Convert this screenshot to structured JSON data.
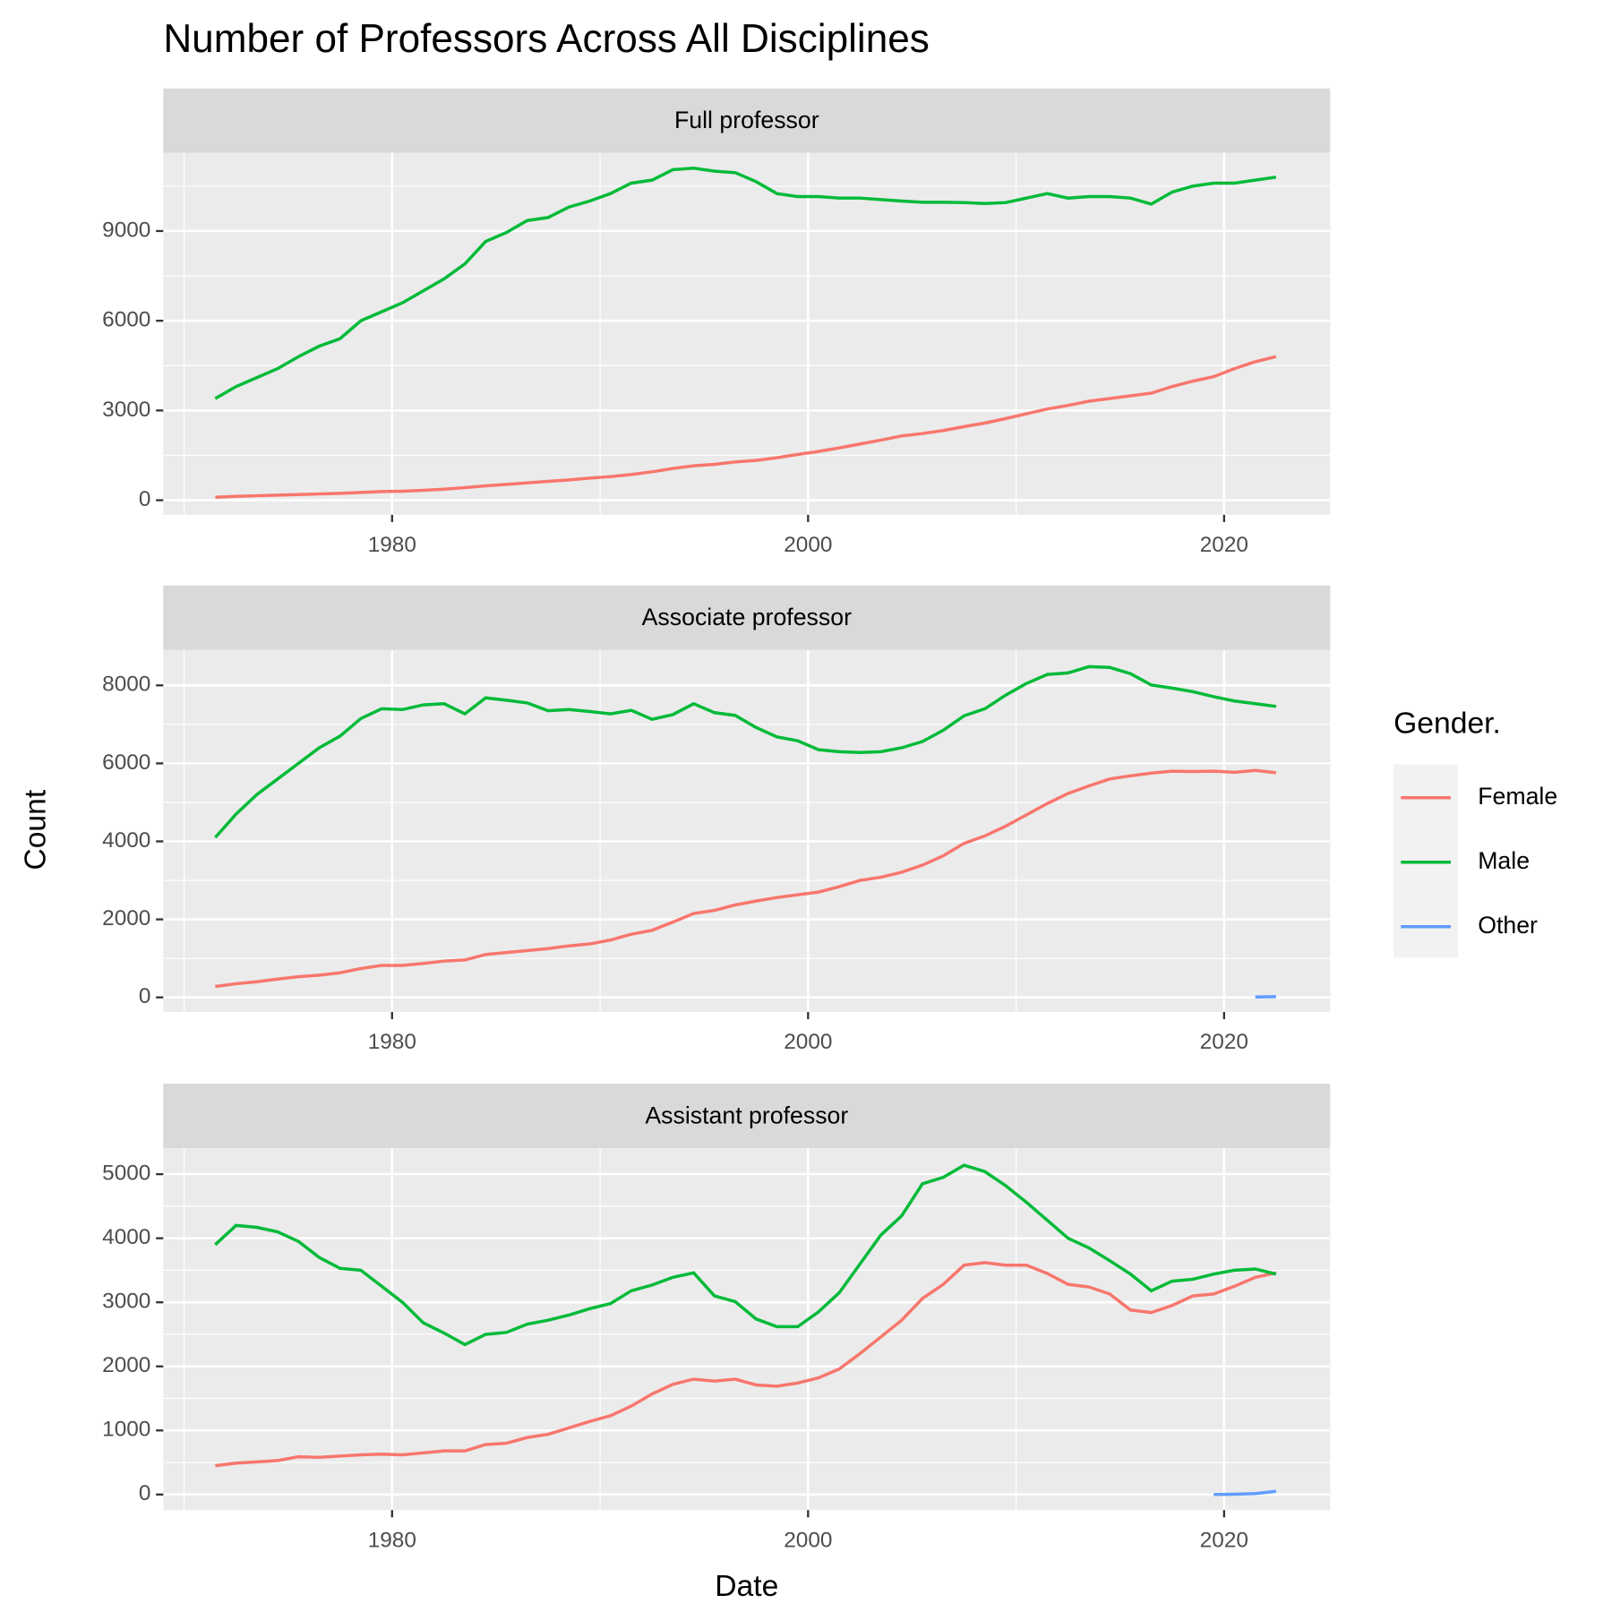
{
  "chart_data": {
    "type": "line",
    "title": "Number of Professors Across All Disciplines",
    "x_label": "Date",
    "y_label": "Count",
    "legend_title": "Gender.",
    "grid": true,
    "x": [
      1971.5,
      1972.5,
      1973.5,
      1974.5,
      1975.5,
      1976.5,
      1977.5,
      1978.5,
      1979.5,
      1980.5,
      1981.5,
      1982.5,
      1983.5,
      1984.5,
      1985.5,
      1986.5,
      1987.5,
      1988.5,
      1989.5,
      1990.5,
      1991.5,
      1992.5,
      1993.5,
      1994.5,
      1995.5,
      1996.5,
      1997.5,
      1998.5,
      1999.5,
      2000.5,
      2001.5,
      2002.5,
      2003.5,
      2004.5,
      2005.5,
      2006.5,
      2007.5,
      2008.5,
      2009.5,
      2010.5,
      2011.5,
      2012.5,
      2013.5,
      2014.5,
      2015.5,
      2016.5,
      2017.5,
      2018.5,
      2019.5,
      2020.5,
      2021.5,
      2022.5
    ],
    "xlim": [
      1969,
      2025.1
    ],
    "xticks": [
      1980,
      2000,
      2020
    ],
    "series": [
      {
        "name": "Female",
        "color": "#f8766d"
      },
      {
        "name": "Male",
        "color": "#00ba38"
      },
      {
        "name": "Other",
        "color": "#619cff"
      }
    ],
    "panels": [
      {
        "title": "Full professor",
        "ylim": [
          -487,
          11611
        ],
        "yticks": [
          0,
          3000,
          6000,
          9000
        ],
        "series": [
          {
            "values": [
              100,
              130,
              150,
              170,
              190,
              210,
              230,
              260,
              290,
              300,
              330,
              370,
              420,
              480,
              530,
              580,
              630,
              680,
              740,
              790,
              860,
              950,
              1060,
              1150,
              1200,
              1280,
              1330,
              1420,
              1530,
              1630,
              1750,
              1880,
              2010,
              2150,
              2230,
              2330,
              2460,
              2580,
              2730,
              2890,
              3050,
              3170,
              3310,
              3400,
              3490,
              3580,
              3800,
              3980,
              4130,
              4400,
              4630,
              4800
            ]
          },
          {
            "values": [
              3400,
              3800,
              4100,
              4400,
              4800,
              5150,
              5400,
              6000,
              6300,
              6600,
              7000,
              7400,
              7900,
              8650,
              8950,
              9350,
              9450,
              9800,
              10000,
              10250,
              10600,
              10700,
              11050,
              11100,
              11000,
              10950,
              10650,
              10250,
              10150,
              10150,
              10100,
              10100,
              10050,
              10000,
              9960,
              9960,
              9950,
              9920,
              9950,
              10100,
              10250,
              10100,
              10150,
              10150,
              10100,
              9900,
              10300,
              10500,
              10600,
              10600,
              10700,
              10800
            ]
          },
          {
            "values": [
              null,
              null,
              null,
              null,
              null,
              null,
              null,
              null,
              null,
              null,
              null,
              null,
              null,
              null,
              null,
              null,
              null,
              null,
              null,
              null,
              null,
              null,
              null,
              null,
              null,
              null,
              null,
              null,
              null,
              null,
              null,
              null,
              null,
              null,
              null,
              null,
              null,
              null,
              null,
              null,
              null,
              null,
              null,
              null,
              null,
              null,
              null,
              null,
              null,
              null,
              null,
              null
            ]
          }
        ]
      },
      {
        "title": "Associate professor",
        "ylim": [
          -373,
          8907
        ],
        "yticks": [
          0,
          2000,
          4000,
          6000,
          8000
        ],
        "series": [
          {
            "values": [
              280,
              350,
              400,
              470,
              530,
              570,
              630,
              740,
              820,
              820,
              870,
              930,
              960,
              1100,
              1150,
              1200,
              1250,
              1320,
              1370,
              1470,
              1620,
              1720,
              1930,
              2150,
              2230,
              2370,
              2470,
              2560,
              2630,
              2700,
              2840,
              3000,
              3080,
              3210,
              3390,
              3630,
              3950,
              4140,
              4390,
              4680,
              4970,
              5230,
              5420,
              5600,
              5680,
              5750,
              5800,
              5790,
              5800,
              5770,
              5820,
              5760
            ]
          },
          {
            "values": [
              4100,
              4700,
              5200,
              5600,
              6000,
              6400,
              6700,
              7150,
              7400,
              7380,
              7500,
              7530,
              7270,
              7680,
              7620,
              7550,
              7350,
              7380,
              7330,
              7270,
              7360,
              7130,
              7250,
              7530,
              7300,
              7230,
              6920,
              6680,
              6580,
              6350,
              6300,
              6280,
              6300,
              6400,
              6560,
              6850,
              7220,
              7400,
              7750,
              8050,
              8280,
              8320,
              8480,
              8460,
              8300,
              8010,
              7930,
              7840,
              7710,
              7600,
              7530,
              7460
            ]
          },
          {
            "values": [
              null,
              null,
              null,
              null,
              null,
              null,
              null,
              null,
              null,
              null,
              null,
              null,
              null,
              null,
              null,
              null,
              null,
              null,
              null,
              null,
              null,
              null,
              null,
              null,
              null,
              null,
              null,
              null,
              null,
              null,
              null,
              null,
              null,
              null,
              null,
              null,
              null,
              null,
              null,
              null,
              null,
              null,
              null,
              null,
              null,
              null,
              null,
              null,
              null,
              null,
              10,
              20
            ]
          }
        ]
      },
      {
        "title": "Assistant professor",
        "ylim": [
          -243,
          5406
        ],
        "yticks": [
          0,
          1000,
          2000,
          3000,
          4000,
          5000
        ],
        "series": [
          {
            "values": [
              450,
              490,
              510,
              530,
              590,
              580,
              600,
              620,
              630,
              620,
              650,
              680,
              680,
              780,
              800,
              890,
              940,
              1040,
              1140,
              1230,
              1380,
              1570,
              1720,
              1800,
              1770,
              1800,
              1710,
              1690,
              1740,
              1820,
              1960,
              2200,
              2460,
              2720,
              3060,
              3280,
              3580,
              3620,
              3580,
              3580,
              3450,
              3280,
              3240,
              3130,
              2880,
              2840,
              2950,
              3100,
              3130,
              3250,
              3390,
              3460
            ]
          },
          {
            "values": [
              3900,
              4200,
              4170,
              4100,
              3950,
              3700,
              3530,
              3500,
              3250,
              3000,
              2680,
              2520,
              2340,
              2500,
              2530,
              2660,
              2720,
              2800,
              2900,
              2980,
              3180,
              3270,
              3390,
              3460,
              3100,
              3010,
              2740,
              2620,
              2620,
              2850,
              3150,
              3600,
              4050,
              4350,
              4850,
              4950,
              5140,
              5040,
              4820,
              4560,
              4280,
              4000,
              3850,
              3650,
              3440,
              3180,
              3330,
              3360,
              3440,
              3500,
              3520,
              3440
            ]
          },
          {
            "values": [
              null,
              null,
              null,
              null,
              null,
              null,
              null,
              null,
              null,
              null,
              null,
              null,
              null,
              null,
              null,
              null,
              null,
              null,
              null,
              null,
              null,
              null,
              null,
              null,
              null,
              null,
              null,
              null,
              null,
              null,
              null,
              null,
              null,
              null,
              null,
              null,
              null,
              null,
              null,
              null,
              null,
              null,
              null,
              null,
              null,
              null,
              null,
              null,
              0,
              5,
              15,
              50
            ]
          }
        ]
      }
    ]
  }
}
